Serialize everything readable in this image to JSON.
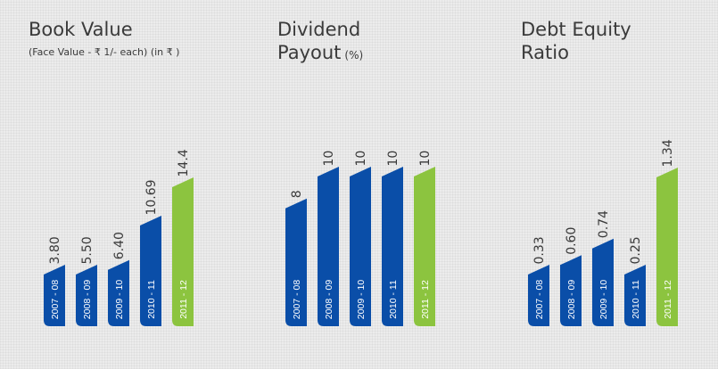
{
  "colors": {
    "blue": "#0a4ea8",
    "green": "#8cc43f",
    "text": "#3a3a3a",
    "bar_label": "#ffffff"
  },
  "panels": [
    {
      "title_lines": [
        "Book Value"
      ],
      "subtitle": "(Face Value - ₹ 1/- each) (in ₹ )",
      "unit": ""
    },
    {
      "title_lines": [
        "Dividend",
        "Payout"
      ],
      "subtitle": "",
      "unit": "(%)"
    },
    {
      "title_lines": [
        "Debt Equity",
        "Ratio"
      ],
      "subtitle": "",
      "unit": ""
    }
  ],
  "chart_data": [
    {
      "type": "bar",
      "title": "Book Value",
      "subtitle": "(Face Value - ₹ 1/- each) (in ₹ )",
      "categories": [
        "2007 - 08",
        "2008 - 09",
        "2009 - 10",
        "2010 - 11",
        "2011 - 12"
      ],
      "values": [
        3.8,
        5.5,
        6.4,
        10.69,
        14.4
      ],
      "value_labels": [
        "3.80",
        "5.50",
        "6.40",
        "10.69",
        "14.4"
      ],
      "highlight_last": true
    },
    {
      "type": "bar",
      "title": "Dividend Payout (%)",
      "categories": [
        "2007 - 08",
        "2008 - 09",
        "2009 - 10",
        "2010 - 11",
        "2011 - 12"
      ],
      "values": [
        8,
        10,
        10,
        10,
        10
      ],
      "value_labels": [
        "8",
        "10",
        "10",
        "10",
        "10"
      ],
      "highlight_last": true
    },
    {
      "type": "bar",
      "title": "Debt Equity Ratio",
      "categories": [
        "2007 - 08",
        "2008 - 09",
        "2009 - 10",
        "2010 - 11",
        "2011 - 12"
      ],
      "values": [
        0.33,
        0.6,
        0.74,
        0.25,
        1.34
      ],
      "value_labels": [
        "0.33",
        "0.60",
        "0.74",
        "0.25",
        "1.34"
      ],
      "highlight_last": true
    }
  ]
}
